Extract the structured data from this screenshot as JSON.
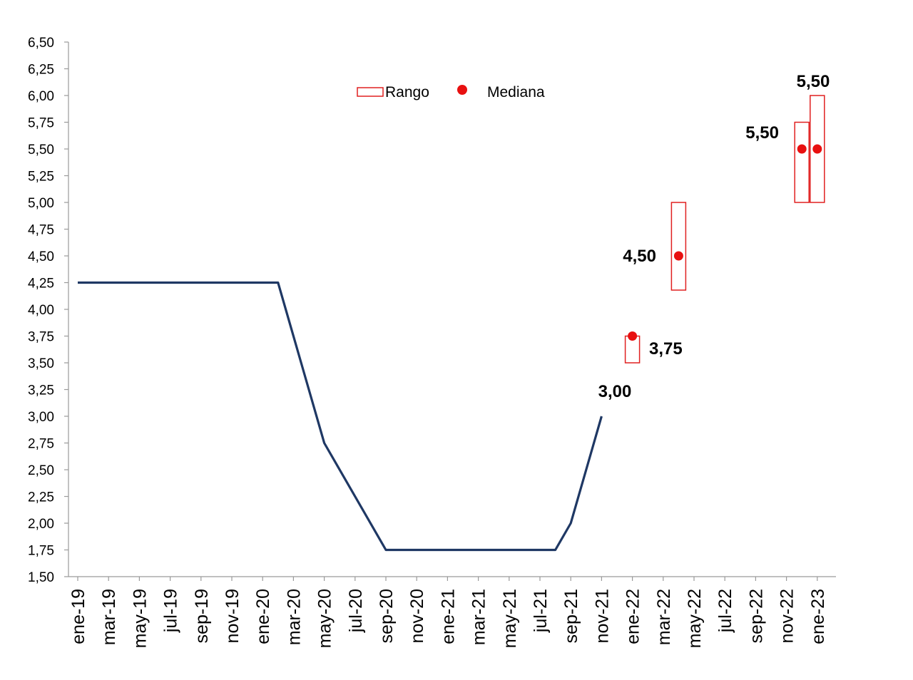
{
  "chart_data": {
    "type": "line",
    "colors": {
      "line": "#1f3864",
      "range": "#e02020",
      "median": "#e81010",
      "axis": "#9a9a9a"
    },
    "yticks": [
      "1,50",
      "1,75",
      "2,00",
      "2,25",
      "2,50",
      "2,75",
      "3,00",
      "3,25",
      "3,50",
      "3,75",
      "4,00",
      "4,25",
      "4,50",
      "4,75",
      "5,00",
      "5,25",
      "5,50",
      "5,75",
      "6,00",
      "6,25",
      "6,50"
    ],
    "ylim": [
      1.5,
      6.5
    ],
    "xticks": [
      "ene-19",
      "mar-19",
      "may-19",
      "jul-19",
      "sep-19",
      "nov-19",
      "ene-20",
      "mar-20",
      "may-20",
      "jul-20",
      "sep-20",
      "nov-20",
      "ene-21",
      "mar-21",
      "may-21",
      "jul-21",
      "sep-21",
      "nov-21",
      "ene-22",
      "mar-22",
      "may-22",
      "jul-22",
      "sep-22",
      "nov-22",
      "ene-23"
    ],
    "series": [
      {
        "points": [
          {
            "x": "ene-19",
            "y": 4.25
          },
          {
            "x": "feb-20",
            "y": 4.25
          },
          {
            "x": "mar-20",
            "y": 3.75
          },
          {
            "x": "may-20",
            "y": 2.75
          },
          {
            "x": "sep-20",
            "y": 1.75
          },
          {
            "x": "ago-21",
            "y": 1.75
          },
          {
            "x": "sep-21",
            "y": 2.0
          },
          {
            "x": "nov-21",
            "y": 3.0
          }
        ]
      }
    ],
    "ranges": [
      {
        "x": "ene-22",
        "low": 3.5,
        "high": 3.75,
        "median": 3.75
      },
      {
        "x": "abr-22",
        "low": 4.18,
        "high": 5.0,
        "median": 4.5
      },
      {
        "x": "dic-22",
        "low": 5.0,
        "high": 5.75,
        "median": 5.5
      },
      {
        "x": "ene-23",
        "low": 5.0,
        "high": 6.0,
        "median": 5.5
      }
    ],
    "labels": {
      "last_actual": "3,00",
      "ene22": "3,75",
      "abr22": "4,50",
      "dic22": "5,50",
      "ene23": "5,50"
    },
    "legend": {
      "range_label": "Rango",
      "median_label": "Mediana",
      "placement": "top-center"
    }
  }
}
